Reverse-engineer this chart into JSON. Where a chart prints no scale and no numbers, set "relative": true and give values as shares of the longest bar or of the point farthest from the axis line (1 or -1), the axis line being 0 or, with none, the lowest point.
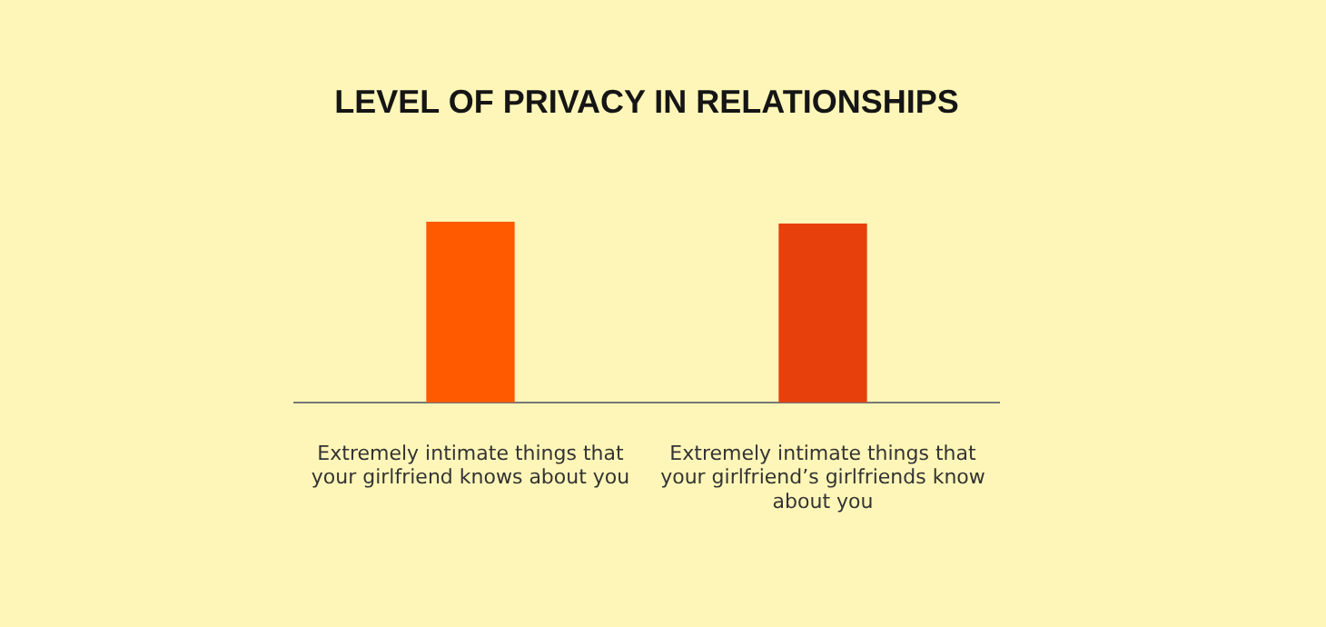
{
  "chart_data": {
    "type": "bar",
    "title": "LEVEL OF PRIVACY IN RELATIONSHIPS",
    "relative": true,
    "categories": [
      "Extremely intimate things that your girlfriend knows about you",
      "Extremely intimate things that your girlfriend’s girlfriends know about you"
    ],
    "values": [
      1,
      0.99
    ],
    "colors": [
      "#ff5a00",
      "#e8400c"
    ],
    "grid": false,
    "legend": false
  }
}
